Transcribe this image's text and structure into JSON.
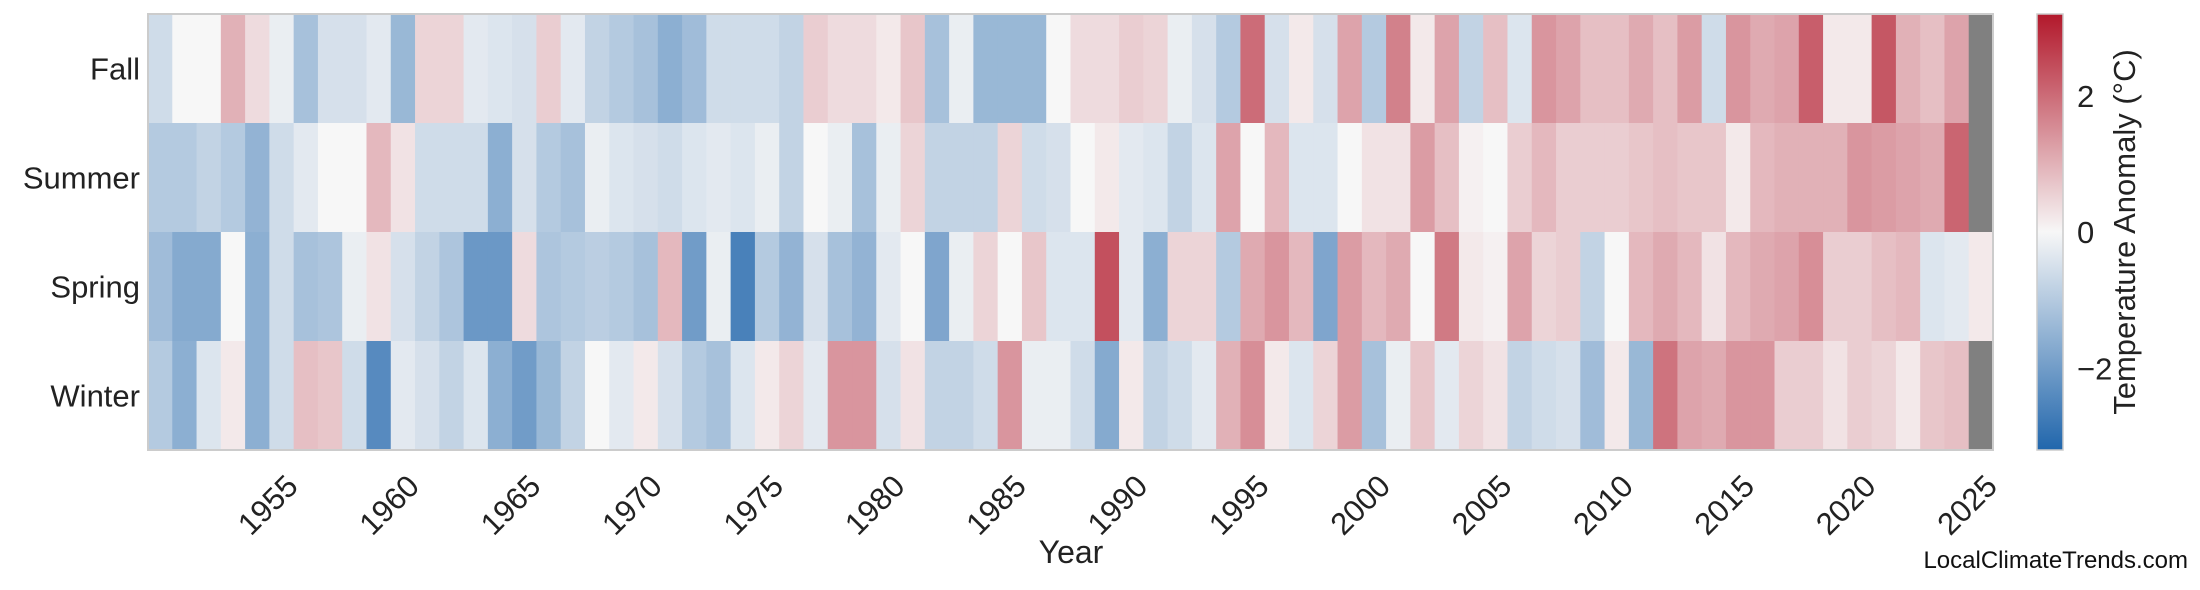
{
  "chart_data": {
    "type": "heatmap",
    "title": "",
    "xlabel": "Year",
    "ylabel": "",
    "x_start_year": 1950,
    "x_end_year": 2025,
    "x_tick_labels": [
      "1955",
      "1960",
      "1965",
      "1970",
      "1975",
      "1980",
      "1985",
      "1990",
      "1995",
      "2000",
      "2005",
      "2010",
      "2015",
      "2020",
      "2025"
    ],
    "rows": [
      "Fall",
      "Summer",
      "Spring",
      "Winter"
    ],
    "values": {
      "Fall": [
        -0.6,
        0.0,
        0.0,
        1.0,
        0.4,
        -0.2,
        -1.2,
        -0.5,
        -0.5,
        -0.3,
        -1.4,
        0.5,
        0.5,
        -0.3,
        -0.4,
        -0.5,
        0.6,
        -0.3,
        -0.8,
        -1.0,
        -1.2,
        -1.6,
        -1.3,
        -0.6,
        -0.6,
        -0.6,
        -0.8,
        0.6,
        0.4,
        0.4,
        0.2,
        0.7,
        -1.2,
        -0.2,
        -1.4,
        -1.4,
        -1.4,
        0.0,
        0.4,
        0.4,
        0.6,
        0.5,
        -0.2,
        -0.5,
        -1.0,
        2.0,
        -0.5,
        0.2,
        -0.5,
        1.2,
        -1.0,
        1.7,
        0.2,
        1.2,
        -0.8,
        0.8,
        -0.4,
        1.4,
        1.2,
        0.8,
        0.8,
        1.1,
        0.8,
        1.3,
        -0.6,
        1.4,
        1.1,
        1.2,
        2.2,
        0.2,
        0.2,
        2.3,
        1.0,
        0.8,
        1.2,
        null
      ],
      "Summer": [
        -1.0,
        -1.0,
        -0.8,
        -1.0,
        -1.5,
        -0.6,
        -0.3,
        0.0,
        0.0,
        0.9,
        0.3,
        -0.6,
        -0.6,
        -0.6,
        -1.6,
        -0.5,
        -1.0,
        -1.2,
        -0.2,
        -0.4,
        -0.5,
        -0.6,
        -0.4,
        -0.3,
        -0.4,
        -0.2,
        -0.8,
        0.0,
        -0.2,
        -1.2,
        -0.2,
        0.5,
        -0.8,
        -0.8,
        -0.8,
        0.5,
        -0.6,
        -0.5,
        0.0,
        0.2,
        -0.3,
        -0.4,
        -0.8,
        -0.4,
        1.2,
        0.0,
        0.9,
        -0.4,
        -0.4,
        0.0,
        0.3,
        0.3,
        1.3,
        0.8,
        0.1,
        0.0,
        0.6,
        0.9,
        0.6,
        0.6,
        0.6,
        0.7,
        0.8,
        0.7,
        0.7,
        0.2,
        0.9,
        1.0,
        1.0,
        1.0,
        1.4,
        1.3,
        1.2,
        1.1,
        2.1,
        null
      ],
      "Spring": [
        -1.3,
        -1.7,
        -1.7,
        0.0,
        -1.6,
        -0.6,
        -1.2,
        -1.1,
        -0.2,
        0.3,
        -0.5,
        -0.8,
        -1.1,
        -2.1,
        -2.1,
        0.4,
        -1.1,
        -1.0,
        -0.9,
        -1.0,
        -1.2,
        0.9,
        -2.0,
        -0.2,
        -2.6,
        -1.0,
        -1.5,
        -0.5,
        -1.2,
        -1.5,
        -0.3,
        0.0,
        -1.8,
        -0.2,
        0.5,
        0.0,
        0.7,
        -0.4,
        -0.4,
        2.4,
        -0.3,
        -1.6,
        0.5,
        0.5,
        -1.0,
        1.1,
        1.4,
        0.9,
        -1.8,
        1.3,
        0.9,
        1.1,
        0.0,
        1.8,
        0.2,
        0.1,
        1.2,
        0.5,
        0.6,
        -0.8,
        0.0,
        0.9,
        1.1,
        0.9,
        0.3,
        0.9,
        1.1,
        1.2,
        1.5,
        0.6,
        0.6,
        0.8,
        0.9,
        -0.4,
        -0.3,
        0.2
      ],
      "Winter": [
        -1.0,
        -1.6,
        -0.4,
        0.2,
        -1.6,
        -0.6,
        0.8,
        0.7,
        -0.6,
        -2.4,
        -0.3,
        -0.5,
        -0.8,
        -0.4,
        -1.6,
        -2.0,
        -1.4,
        -0.8,
        0.0,
        -0.3,
        0.2,
        -0.5,
        -1.0,
        -1.2,
        -0.4,
        0.2,
        0.5,
        -0.3,
        1.4,
        1.4,
        -0.5,
        0.3,
        -0.8,
        -0.8,
        -0.6,
        1.4,
        -0.2,
        -0.2,
        -0.6,
        -1.7,
        0.2,
        -0.8,
        -0.6,
        -0.3,
        1.0,
        1.5,
        0.2,
        -0.4,
        0.5,
        1.3,
        -1.2,
        -0.2,
        0.7,
        -0.3,
        0.5,
        0.3,
        -0.8,
        -0.6,
        -0.5,
        -1.3,
        0.2,
        -1.4,
        1.9,
        1.2,
        1.1,
        1.4,
        1.4,
        0.6,
        0.6,
        0.3,
        0.6,
        0.5,
        0.2,
        0.7,
        0.8
      ]
    },
    "missing_value_color": "#808080",
    "colorbar": {
      "label": "Temperature Anomaly (°C)",
      "vmin": -3.2,
      "vmax": 3.2,
      "ticks": [
        -2,
        0,
        2
      ],
      "tick_labels": [
        "−2",
        "0",
        "2"
      ],
      "colors": [
        "#2166ac",
        "#f7f7f7",
        "#b2182b"
      ]
    },
    "grid": false,
    "attribution": "LocalClimateTrends.com"
  }
}
